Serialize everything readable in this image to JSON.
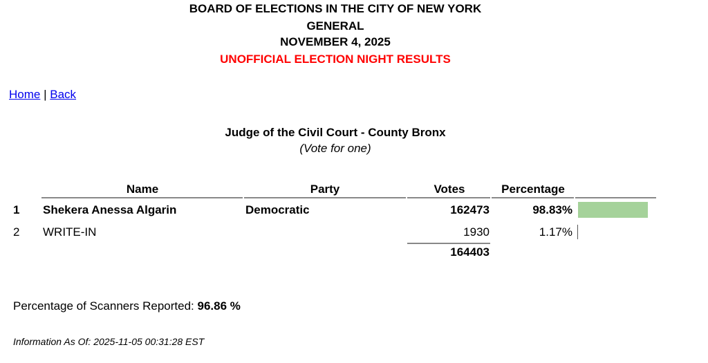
{
  "header": {
    "line1": "BOARD OF ELECTIONS IN THE CITY OF NEW YORK",
    "line2": "GENERAL",
    "line3": "NOVEMBER 4, 2025",
    "line4": "UNOFFICIAL ELECTION NIGHT RESULTS",
    "accent": "#ff0000"
  },
  "nav": {
    "home": "Home",
    "sep": "|",
    "back": "Back"
  },
  "contest": {
    "title": "Judge of the Civil Court - County Bronx",
    "subtitle": "(Vote for one)"
  },
  "table": {
    "headers": [
      "Name",
      "Party",
      "Votes",
      "Percentage"
    ],
    "rows": [
      {
        "rank": "1",
        "name": "Shekera Anessa Algarin",
        "party": "Democratic",
        "votes": "162473",
        "percentage": "98.83%",
        "share": 98.83
      },
      {
        "rank": "2",
        "name": "WRITE-IN",
        "party": "",
        "votes": "1930",
        "percentage": "1.17%",
        "share": 1.17
      }
    ],
    "total": "164403",
    "bar_color": "#a5d29a"
  },
  "footer": {
    "scanners_label": "Percentage of Scanners Reported:",
    "scanners_value": "96.86 %",
    "info": "Information As Of: 2025-11-05 00:31:28 EST"
  }
}
